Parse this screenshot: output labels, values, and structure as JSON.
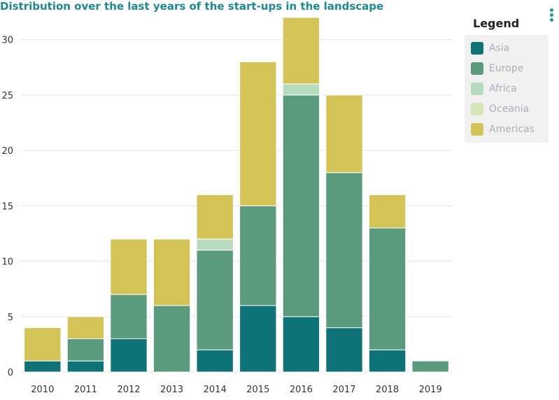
{
  "chart_data": {
    "type": "bar",
    "stacked": true,
    "title": "Distribution over the last years of the start-ups in the landscape",
    "categories": [
      "2010",
      "2011",
      "2012",
      "2013",
      "2014",
      "2015",
      "2016",
      "2017",
      "2018",
      "2019"
    ],
    "series": [
      {
        "name": "Asia",
        "color": "#0d7376",
        "values": [
          1,
          1,
          3,
          0,
          2,
          6,
          5,
          4,
          2,
          0
        ]
      },
      {
        "name": "Europe",
        "color": "#5a9a7d",
        "values": [
          0,
          2,
          4,
          6,
          9,
          9,
          20,
          14,
          11,
          1
        ]
      },
      {
        "name": "Africa",
        "color": "#b7dbbd",
        "values": [
          0,
          0,
          0,
          0,
          1,
          0,
          1,
          0,
          0,
          0
        ]
      },
      {
        "name": "Oceania",
        "color": "#d4e5b6",
        "values": [
          0,
          0,
          0,
          0,
          0,
          0,
          0,
          0,
          0,
          0
        ]
      },
      {
        "name": "Americas",
        "color": "#d3c455",
        "values": [
          3,
          2,
          5,
          6,
          4,
          13,
          6,
          7,
          3,
          0
        ]
      }
    ],
    "ylim": [
      0,
      32
    ],
    "yticks": [
      0,
      5,
      10,
      15,
      20,
      25,
      30
    ],
    "grid": true,
    "legend_title": "Legend",
    "legend_position": "right"
  }
}
